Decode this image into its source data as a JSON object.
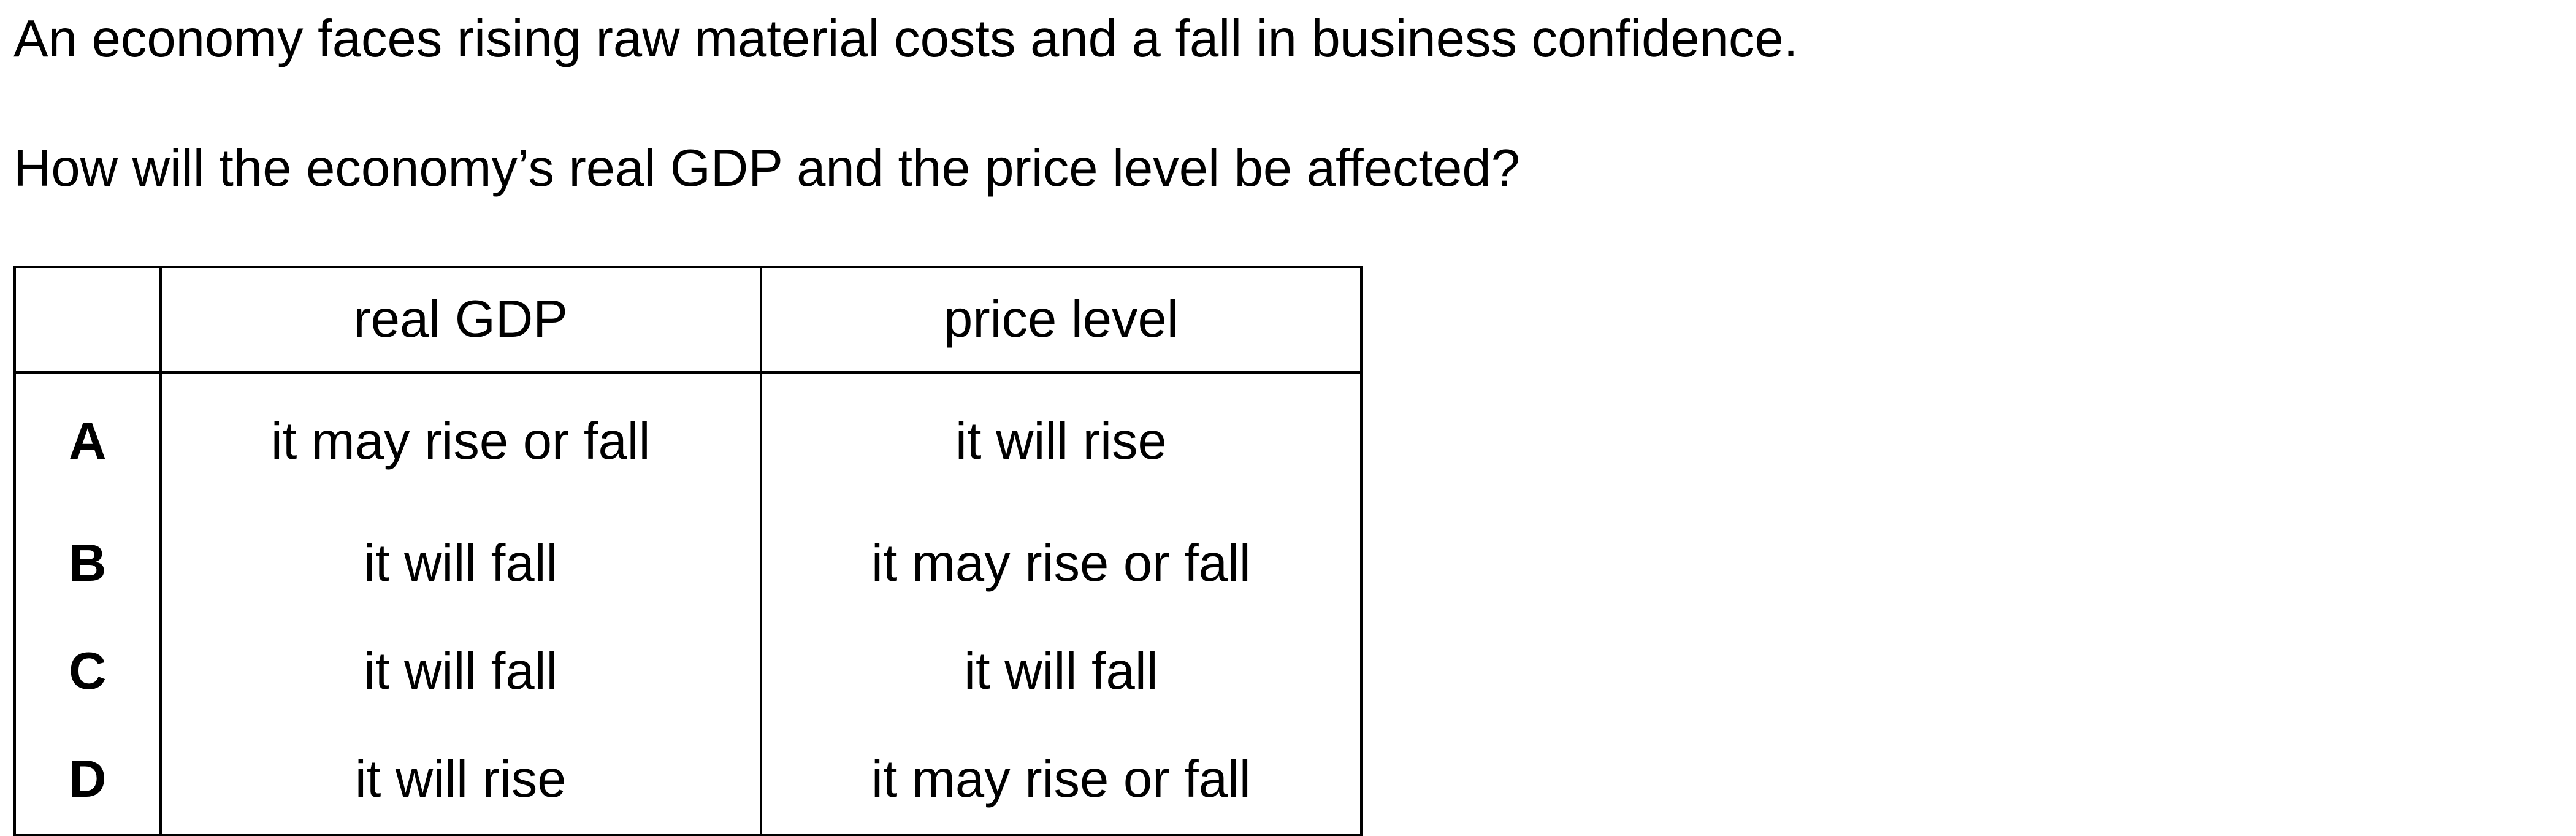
{
  "stem": "An economy faces rising raw material costs and a fall in business confidence.",
  "question": "How will the economy’s real GDP and the price level be affected?",
  "table": {
    "headers": [
      "",
      "real GDP",
      "price level"
    ],
    "rows": [
      {
        "letter": "A",
        "real_gdp": "it may rise or fall",
        "price_level": "it will rise"
      },
      {
        "letter": "B",
        "real_gdp": "it will fall",
        "price_level": "it may rise or fall"
      },
      {
        "letter": "C",
        "real_gdp": "it will fall",
        "price_level": "it will fall"
      },
      {
        "letter": "D",
        "real_gdp": "it will rise",
        "price_level": "it may rise or fall"
      }
    ]
  }
}
